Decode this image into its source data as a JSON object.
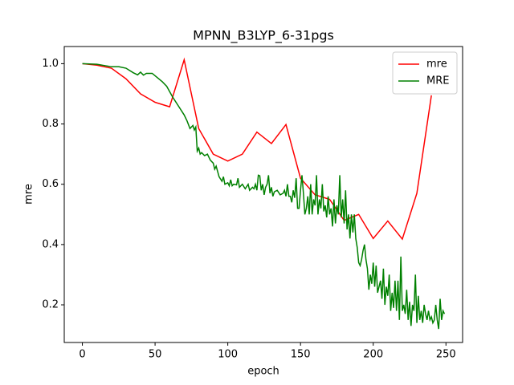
{
  "chart_data": {
    "type": "line",
    "title": "MPNN_B3LYP_6-31pgs",
    "x_label": "epoch",
    "y_label": "mre",
    "xlim": [
      -12.45,
      261.45
    ],
    "xticks": [
      0,
      50,
      100,
      150,
      200,
      250
    ],
    "ylim": [
      0.075,
      1.057
    ],
    "yticks": [
      0.2,
      0.4,
      0.6,
      0.8,
      {
        "value": 1,
        "label": "1.0"
      }
    ],
    "legend": "upper right",
    "series": [
      {
        "name": "mre",
        "color": "#ff0000",
        "x": [
          0,
          10,
          20,
          30,
          40,
          50,
          60,
          70,
          80,
          90,
          100,
          110,
          120,
          130,
          140,
          150,
          160,
          170,
          180,
          190,
          200,
          210,
          220,
          230,
          240
        ],
        "values": [
          1.0,
          0.995,
          0.985,
          0.95,
          0.9,
          0.872,
          0.857,
          1.013,
          0.785,
          0.7,
          0.677,
          0.7,
          0.773,
          0.735,
          0.798,
          0.62,
          0.565,
          0.55,
          0.48,
          0.5,
          0.42,
          0.478,
          0.418,
          0.57,
          0.895
        ]
      },
      {
        "name": "MRE",
        "color": "#008000",
        "x": [
          0,
          10,
          20,
          25,
          30,
          35,
          38,
          40,
          42,
          44,
          48,
          50,
          55,
          58,
          62,
          66,
          70,
          72,
          74,
          76,
          77,
          78,
          79,
          80,
          81,
          82,
          84,
          86,
          88,
          90,
          91,
          92,
          94,
          96,
          97,
          98,
          100,
          101,
          102,
          103,
          104,
          106,
          107,
          108,
          110,
          112,
          114,
          115,
          117,
          118,
          119,
          120,
          121,
          122,
          123,
          124,
          125,
          126,
          127,
          128,
          129,
          130,
          131,
          132,
          134,
          136,
          138,
          139,
          140,
          141,
          142,
          143,
          144,
          145,
          146,
          147,
          148,
          149,
          150,
          151,
          152,
          153,
          154,
          155,
          156,
          157,
          158,
          159,
          160,
          161,
          162,
          163,
          164,
          165,
          166,
          167,
          168,
          169,
          170,
          171,
          172,
          173,
          174,
          175,
          176,
          177,
          178,
          179,
          180,
          181,
          182,
          183,
          184,
          185,
          186,
          187,
          188,
          189,
          190,
          191,
          192,
          193,
          194,
          195,
          196,
          197,
          198,
          199,
          200,
          201,
          202,
          203,
          204,
          205,
          206,
          207,
          208,
          209,
          210,
          211,
          212,
          213,
          214,
          215,
          216,
          217,
          218,
          219,
          220,
          221,
          222,
          223,
          224,
          225,
          226,
          227,
          228,
          229,
          230,
          231,
          232,
          233,
          234,
          235,
          236,
          237,
          238,
          239,
          240,
          241,
          242,
          243,
          244,
          245,
          246,
          247,
          248,
          249
        ],
        "values": [
          1.0,
          0.998,
          0.99,
          0.99,
          0.985,
          0.97,
          0.963,
          0.972,
          0.962,
          0.968,
          0.968,
          0.96,
          0.94,
          0.925,
          0.89,
          0.86,
          0.83,
          0.81,
          0.785,
          0.795,
          0.78,
          0.79,
          0.71,
          0.72,
          0.7,
          0.705,
          0.695,
          0.7,
          0.68,
          0.67,
          0.65,
          0.66,
          0.625,
          0.61,
          0.625,
          0.6,
          0.605,
          0.595,
          0.615,
          0.595,
          0.6,
          0.598,
          0.62,
          0.59,
          0.6,
          0.585,
          0.6,
          0.58,
          0.59,
          0.585,
          0.6,
          0.58,
          0.63,
          0.628,
          0.58,
          0.6,
          0.565,
          0.59,
          0.6,
          0.63,
          0.57,
          0.59,
          0.56,
          0.575,
          0.58,
          0.565,
          0.57,
          0.58,
          0.56,
          0.6,
          0.56,
          0.56,
          0.54,
          0.58,
          0.555,
          0.62,
          0.52,
          0.52,
          0.58,
          0.63,
          0.57,
          0.5,
          0.52,
          0.56,
          0.5,
          0.6,
          0.5,
          0.55,
          0.53,
          0.63,
          0.5,
          0.55,
          0.52,
          0.6,
          0.51,
          0.53,
          0.49,
          0.56,
          0.5,
          0.52,
          0.46,
          0.55,
          0.47,
          0.53,
          0.5,
          0.63,
          0.49,
          0.55,
          0.47,
          0.58,
          0.45,
          0.5,
          0.42,
          0.5,
          0.44,
          0.5,
          0.42,
          0.39,
          0.34,
          0.33,
          0.35,
          0.38,
          0.4,
          0.35,
          0.32,
          0.25,
          0.3,
          0.27,
          0.34,
          0.26,
          0.33,
          0.24,
          0.26,
          0.28,
          0.22,
          0.32,
          0.2,
          0.26,
          0.23,
          0.3,
          0.18,
          0.24,
          0.19,
          0.28,
          0.18,
          0.28,
          0.15,
          0.36,
          0.18,
          0.2,
          0.17,
          0.25,
          0.15,
          0.21,
          0.13,
          0.2,
          0.18,
          0.3,
          0.14,
          0.23,
          0.15,
          0.18,
          0.14,
          0.2,
          0.17,
          0.15,
          0.18,
          0.15,
          0.16,
          0.14,
          0.15,
          0.2,
          0.15,
          0.12,
          0.22,
          0.15,
          0.18,
          0.17
        ]
      }
    ]
  }
}
